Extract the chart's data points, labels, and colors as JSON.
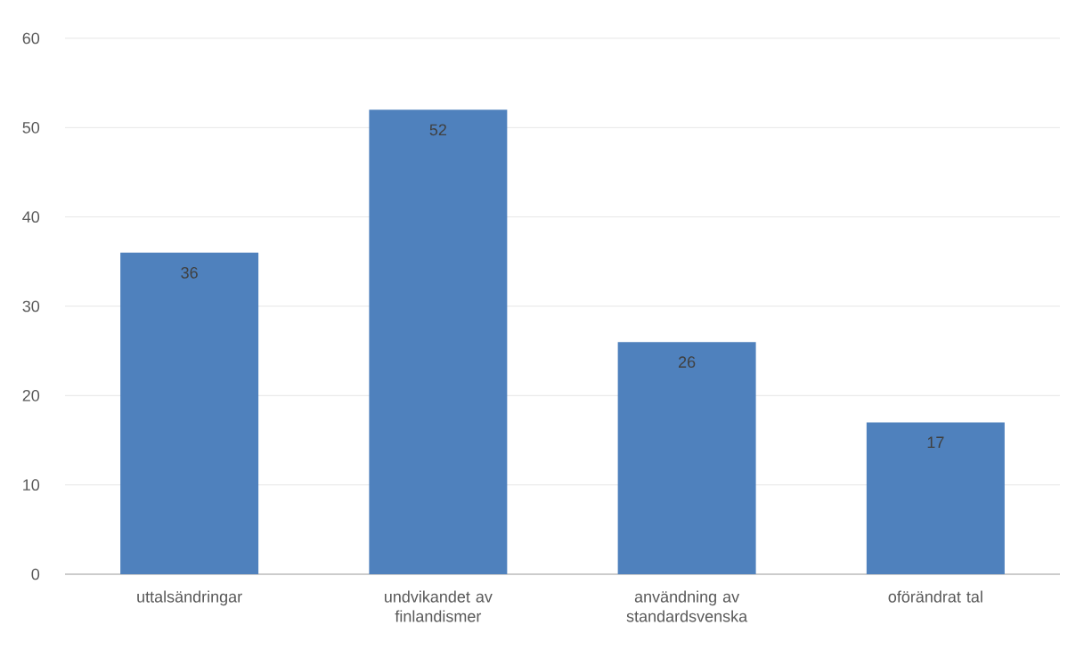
{
  "chart_data": {
    "type": "bar",
    "categories": [
      "uttalsändringar",
      "undvikandet av finlandismer",
      "användning av standardsvenska",
      "oförändrat tal"
    ],
    "values": [
      36,
      52,
      26,
      17
    ],
    "color": "#4f81bd",
    "ylim": [
      0,
      60
    ],
    "yticks": [
      0,
      10,
      20,
      30,
      40,
      50,
      60
    ],
    "grid": "y",
    "data_labels": true
  }
}
